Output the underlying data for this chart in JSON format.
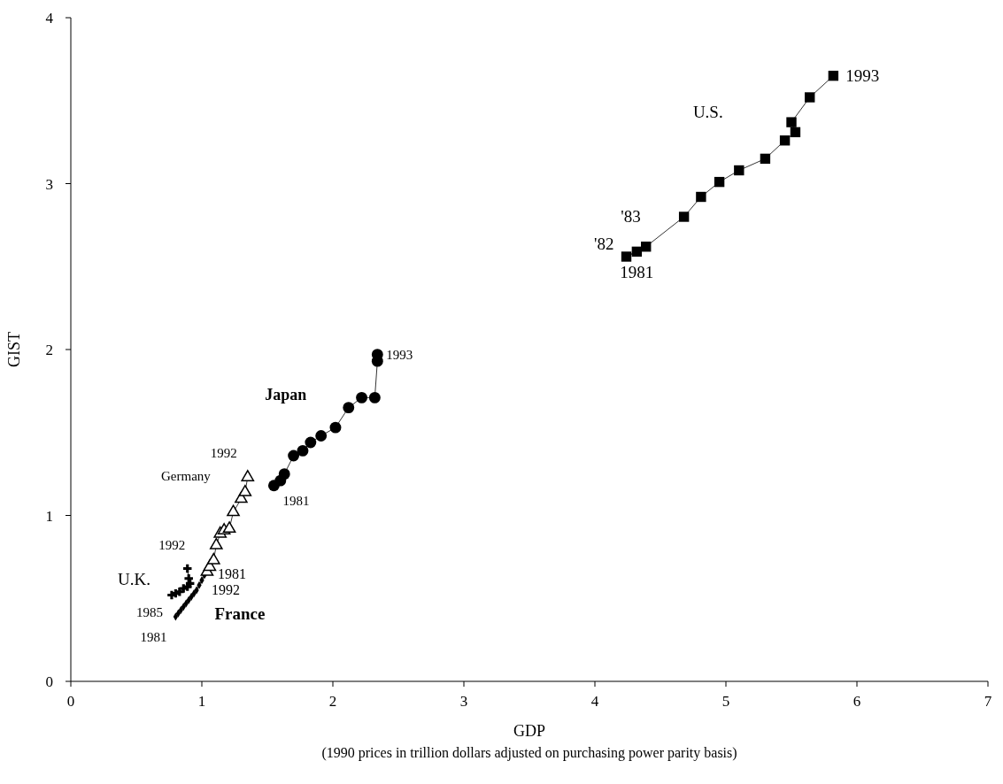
{
  "chart_data": {
    "type": "line",
    "xlabel": "GDP\n(1990 prices in trillion dollars adjusted on purchasing power parity basis)",
    "ylabel": "GIST",
    "xlim": [
      0,
      7
    ],
    "xticks": [
      0,
      1,
      2,
      3,
      4,
      5,
      6,
      7
    ],
    "ylim": [
      0,
      4
    ],
    "yticks": [
      0,
      1,
      2,
      3,
      4
    ],
    "grid": false,
    "legend": false,
    "line_style": "solid",
    "series": [
      {
        "name": "U.S.",
        "color": "#000000",
        "marker": "square",
        "x": [
          4.32,
          4.24,
          4.39,
          4.68,
          4.81,
          4.95,
          5.1,
          5.3,
          5.45,
          5.53,
          5.5,
          5.64,
          5.82
        ],
        "values": [
          2.59,
          2.56,
          2.62,
          2.8,
          2.92,
          3.01,
          3.08,
          3.15,
          3.26,
          3.31,
          3.37,
          3.52,
          3.65
        ]
      },
      {
        "name": "Japan",
        "color": "#000000",
        "marker": "circle",
        "x": [
          1.55,
          1.6,
          1.63,
          1.7,
          1.77,
          1.83,
          1.91,
          2.02,
          2.12,
          2.22,
          2.32,
          2.34,
          2.34
        ],
        "values": [
          1.18,
          1.21,
          1.25,
          1.36,
          1.39,
          1.44,
          1.48,
          1.53,
          1.65,
          1.71,
          1.71,
          1.93,
          1.97
        ]
      },
      {
        "name": "Germany",
        "color": "#000000",
        "marker": "triangle",
        "x": [
          1.04,
          1.06,
          1.09,
          1.11,
          1.14,
          1.17,
          1.21,
          1.24,
          1.3,
          1.33,
          1.35
        ],
        "values": [
          0.66,
          0.69,
          0.73,
          0.82,
          0.89,
          0.91,
          0.92,
          1.02,
          1.1,
          1.14,
          1.23
        ]
      },
      {
        "name": "U.K.",
        "color": "#000000",
        "marker": "cross",
        "x": [
          0.77,
          0.8,
          0.83,
          0.86,
          0.89,
          0.91,
          0.9,
          0.89
        ],
        "values": [
          0.52,
          0.53,
          0.54,
          0.56,
          0.57,
          0.59,
          0.62,
          0.68
        ]
      },
      {
        "name": "France",
        "color": "#000000",
        "marker": "diamond",
        "x": [
          0.8,
          0.82,
          0.84,
          0.86,
          0.88,
          0.9,
          0.92,
          0.94,
          0.96,
          0.98,
          1.0,
          1.02
        ],
        "values": [
          0.39,
          0.41,
          0.43,
          0.45,
          0.47,
          0.49,
          0.51,
          0.53,
          0.55,
          0.58,
          0.61,
          0.64
        ]
      }
    ],
    "annotations": [
      {
        "text": "1993",
        "x": 5.82,
        "y": 3.65
      },
      {
        "text": "'82",
        "x": 4.24,
        "y": 2.56
      },
      {
        "text": "'83",
        "x": 4.39,
        "y": 2.62
      },
      {
        "text": "1981",
        "x": 4.32,
        "y": 2.59
      },
      {
        "text": "1993",
        "x": 2.34,
        "y": 1.97
      },
      {
        "text": "1981",
        "x": 1.55,
        "y": 1.18
      },
      {
        "text": "1992",
        "x": 1.35,
        "y": 1.23
      },
      {
        "text": "1981",
        "x": 1.04,
        "y": 0.66
      },
      {
        "text": "1992",
        "x": 0.9,
        "y": 0.68
      },
      {
        "text": "1985",
        "x": 0.77,
        "y": 0.52
      },
      {
        "text": "1981",
        "x": 0.8,
        "y": 0.39
      },
      {
        "text": "1992",
        "x": 1.02,
        "y": 0.64
      }
    ]
  }
}
